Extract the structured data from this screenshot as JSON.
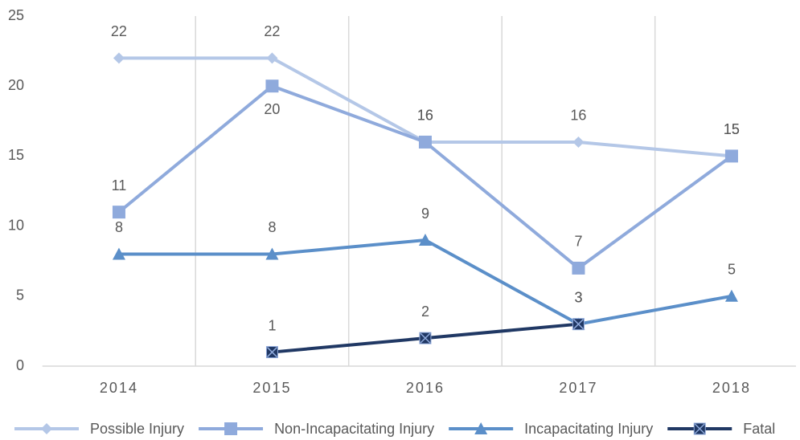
{
  "chart_data": {
    "type": "line",
    "categories": [
      "2014",
      "2015",
      "2016",
      "2017",
      "2018"
    ],
    "series": [
      {
        "name": "Possible Injury",
        "color": "#b4c7e7",
        "marker": "diamond",
        "values": [
          22,
          22,
          16,
          16,
          15
        ]
      },
      {
        "name": "Non-Incapacitating Injury",
        "color": "#8faadc",
        "marker": "square",
        "values": [
          11,
          20,
          16,
          7,
          15
        ]
      },
      {
        "name": "Incapacitating Injury",
        "color": "#5b8fc9",
        "marker": "triangle",
        "values": [
          8,
          8,
          9,
          3,
          5
        ]
      },
      {
        "name": "Fatal",
        "color": "#203864",
        "marker": "xsquare",
        "values": [
          null,
          1,
          2,
          3,
          null
        ]
      }
    ],
    "ylim": [
      0,
      25
    ],
    "yticks": [
      0,
      5,
      10,
      15,
      20,
      25
    ],
    "grid": true,
    "legend": "bottom"
  }
}
